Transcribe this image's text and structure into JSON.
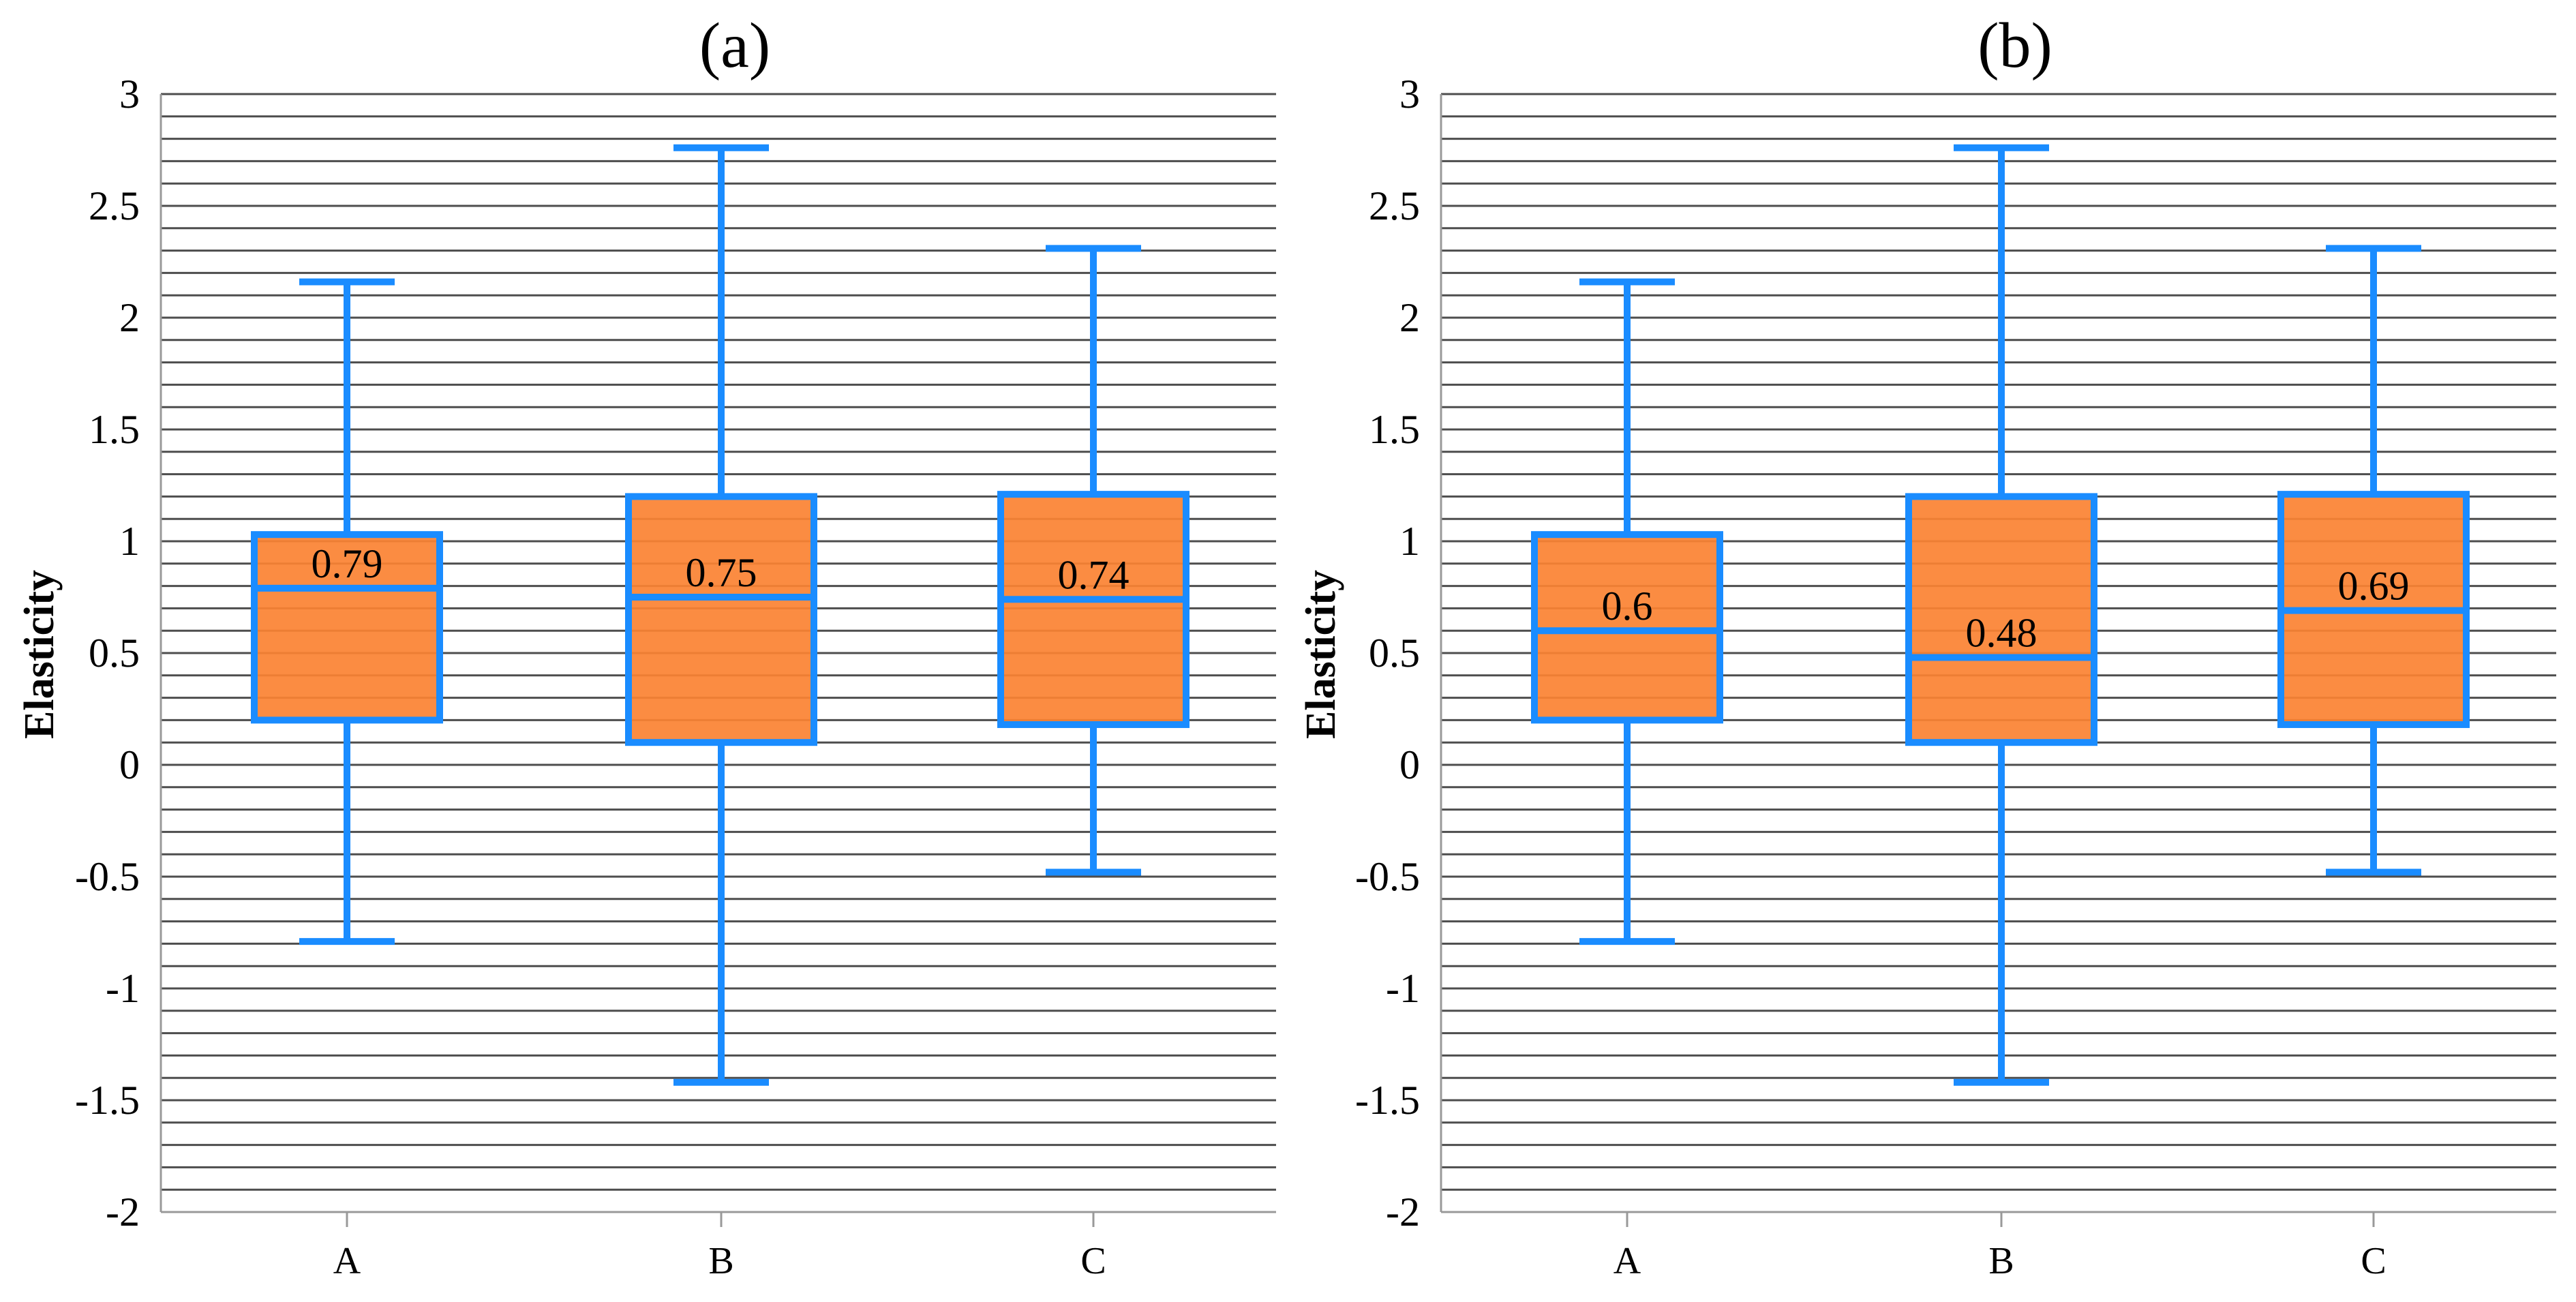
{
  "chart_data": [
    {
      "type": "box",
      "title": "(a)",
      "ylabel": "Elasticity",
      "ylim": [
        -2,
        3
      ],
      "yticks": [
        3,
        2.5,
        2,
        1.5,
        1,
        0.5,
        0,
        -0.5,
        -1,
        -1.5,
        -2
      ],
      "ytick_labels": [
        "3",
        "2.5",
        "2",
        "1.5",
        "1",
        "0.5",
        "0",
        "-0.5",
        "-1",
        "-1.5",
        "-2"
      ],
      "categories": [
        "A",
        "B",
        "C"
      ],
      "boxes": [
        {
          "category": "A",
          "min": -0.79,
          "q1": 0.2,
          "median": 0.79,
          "q3": 1.03,
          "max": 2.16,
          "label": "0.79"
        },
        {
          "category": "B",
          "min": -1.42,
          "q1": 0.1,
          "median": 0.75,
          "q3": 1.2,
          "max": 2.76,
          "label": "0.75"
        },
        {
          "category": "C",
          "min": -0.48,
          "q1": 0.18,
          "median": 0.74,
          "q3": 1.21,
          "max": 2.31,
          "label": "0.74"
        }
      ]
    },
    {
      "type": "box",
      "title": "(b)",
      "ylabel": "Elasticity",
      "ylim": [
        -2,
        3
      ],
      "yticks": [
        3,
        2.5,
        2,
        1.5,
        1,
        0.5,
        0,
        -0.5,
        -1,
        -1.5,
        -2
      ],
      "ytick_labels": [
        "3",
        "2.5",
        "2",
        "1.5",
        "1",
        "0.5",
        "0",
        "-0.5",
        "-1",
        "-1.5",
        "-2"
      ],
      "categories": [
        "A",
        "B",
        "C"
      ],
      "boxes": [
        {
          "category": "A",
          "min": -0.79,
          "q1": 0.2,
          "median": 0.6,
          "q3": 1.03,
          "max": 2.16,
          "label": "0.6"
        },
        {
          "category": "B",
          "min": -1.42,
          "q1": 0.1,
          "median": 0.48,
          "q3": 1.2,
          "max": 2.76,
          "label": "0.48"
        },
        {
          "category": "C",
          "min": -0.48,
          "q1": 0.18,
          "median": 0.69,
          "q3": 1.21,
          "max": 2.31,
          "label": "0.69"
        }
      ]
    }
  ],
  "colors": {
    "box_fill": "#fb8232",
    "box_stroke": "#1a8cff",
    "whisker": "#1a8cff",
    "gridline": "#4d4d4d",
    "axis": "#999999"
  }
}
